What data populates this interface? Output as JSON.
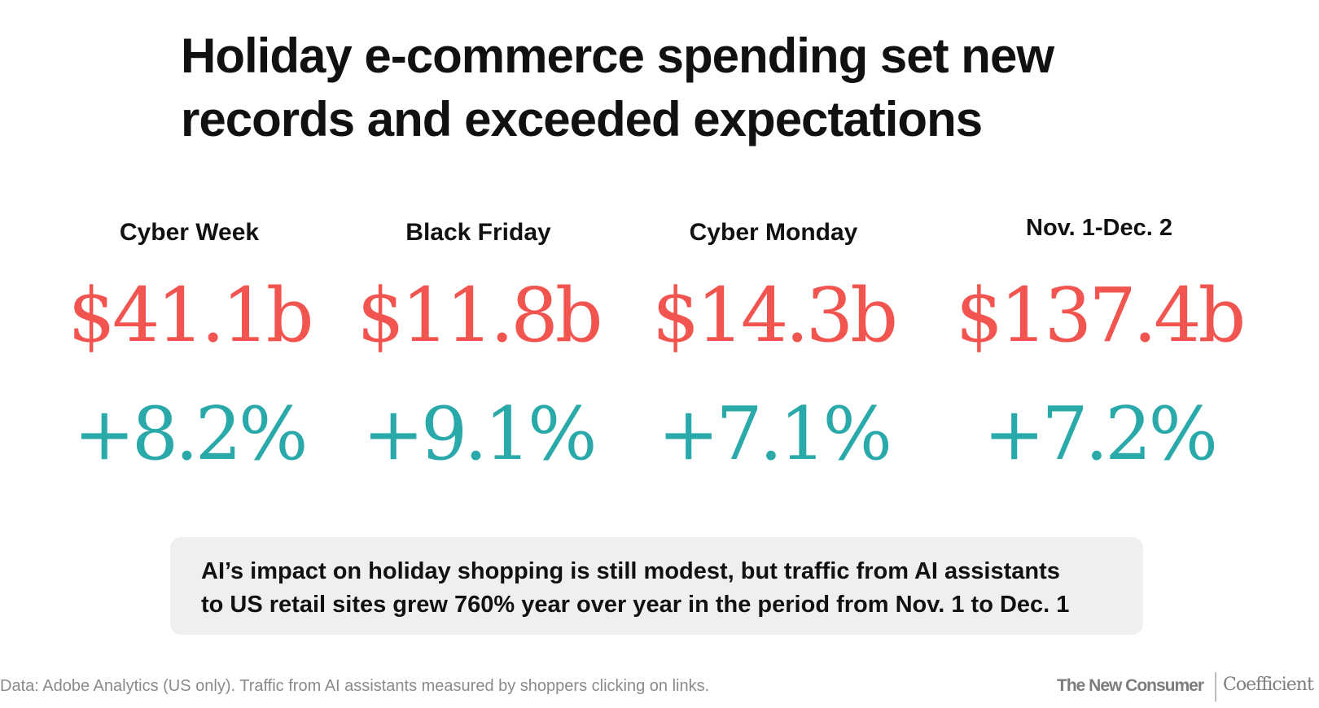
{
  "title": {
    "line1": "Holiday e-commerce spending set new",
    "line2": "records and exceeded expectations"
  },
  "colors": {
    "value": "#f2544f",
    "change": "#2aa9ab",
    "text": "#111111",
    "callout_bg": "#efefef",
    "footer": "#8a8a8a"
  },
  "stats": [
    {
      "label": "Cyber Week",
      "value": "$41.1b",
      "change": "+8.2%"
    },
    {
      "label": "Black Friday",
      "value": "$11.8b",
      "change": "+9.1%"
    },
    {
      "label": "Cyber Monday",
      "value": "$14.3b",
      "change": "+7.1%"
    },
    {
      "label": "Nov. 1-Dec. 2",
      "value": "$137.4b",
      "change": "+7.2%"
    }
  ],
  "callout": {
    "line1": "AI’s impact on holiday shopping is still modest, but traffic from AI assistants",
    "line2": "to US retail sites grew 760% year over year in the period from Nov. 1 to Dec. 1"
  },
  "footer": {
    "note": "Data: Adobe Analytics (US only). Traffic from AI assistants measured by shoppers clicking on links.",
    "brand_one": "The New Consumer",
    "brand_two": "Coefficient"
  }
}
